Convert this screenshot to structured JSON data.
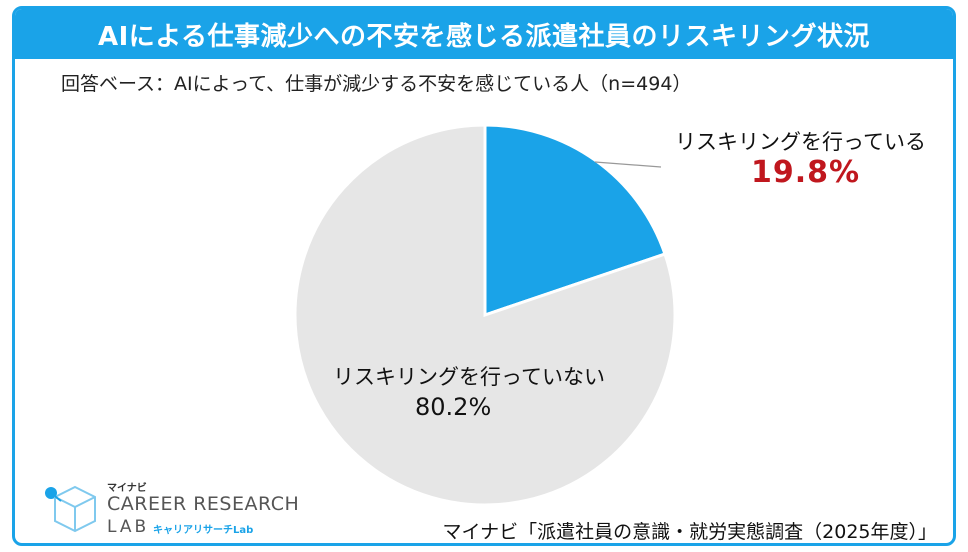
{
  "title": "AIによる仕事減少への不安を感じる派遣社員のリスキリング状況",
  "base_note": "回答ベース：AIによって、仕事が減少する不安を感じている人（n=494）",
  "source": "マイナビ「派遣社員の意識・就労実態調査（2025年度）」",
  "logo": {
    "mynavi": "マイナビ",
    "main": "CAREER RESEARCH",
    "lab": "LAB",
    "sub": "キャリアリサーチLab"
  },
  "colors": {
    "accent": "#1aa3e8",
    "slice_yes": "#1aa3e8",
    "slice_no": "#e6e6e6",
    "highlight": "#c0171e"
  },
  "chart_data": {
    "type": "pie",
    "title": "AIによる仕事減少への不安を感じる派遣社員のリスキリング状況",
    "slices": [
      {
        "label": "リスキリングを行っている",
        "value": 19.8,
        "display": "19.8%"
      },
      {
        "label": "リスキリングを行っていない",
        "value": 80.2,
        "display": "80.2%"
      }
    ],
    "start_angle_deg": 0,
    "direction": "clockwise"
  }
}
